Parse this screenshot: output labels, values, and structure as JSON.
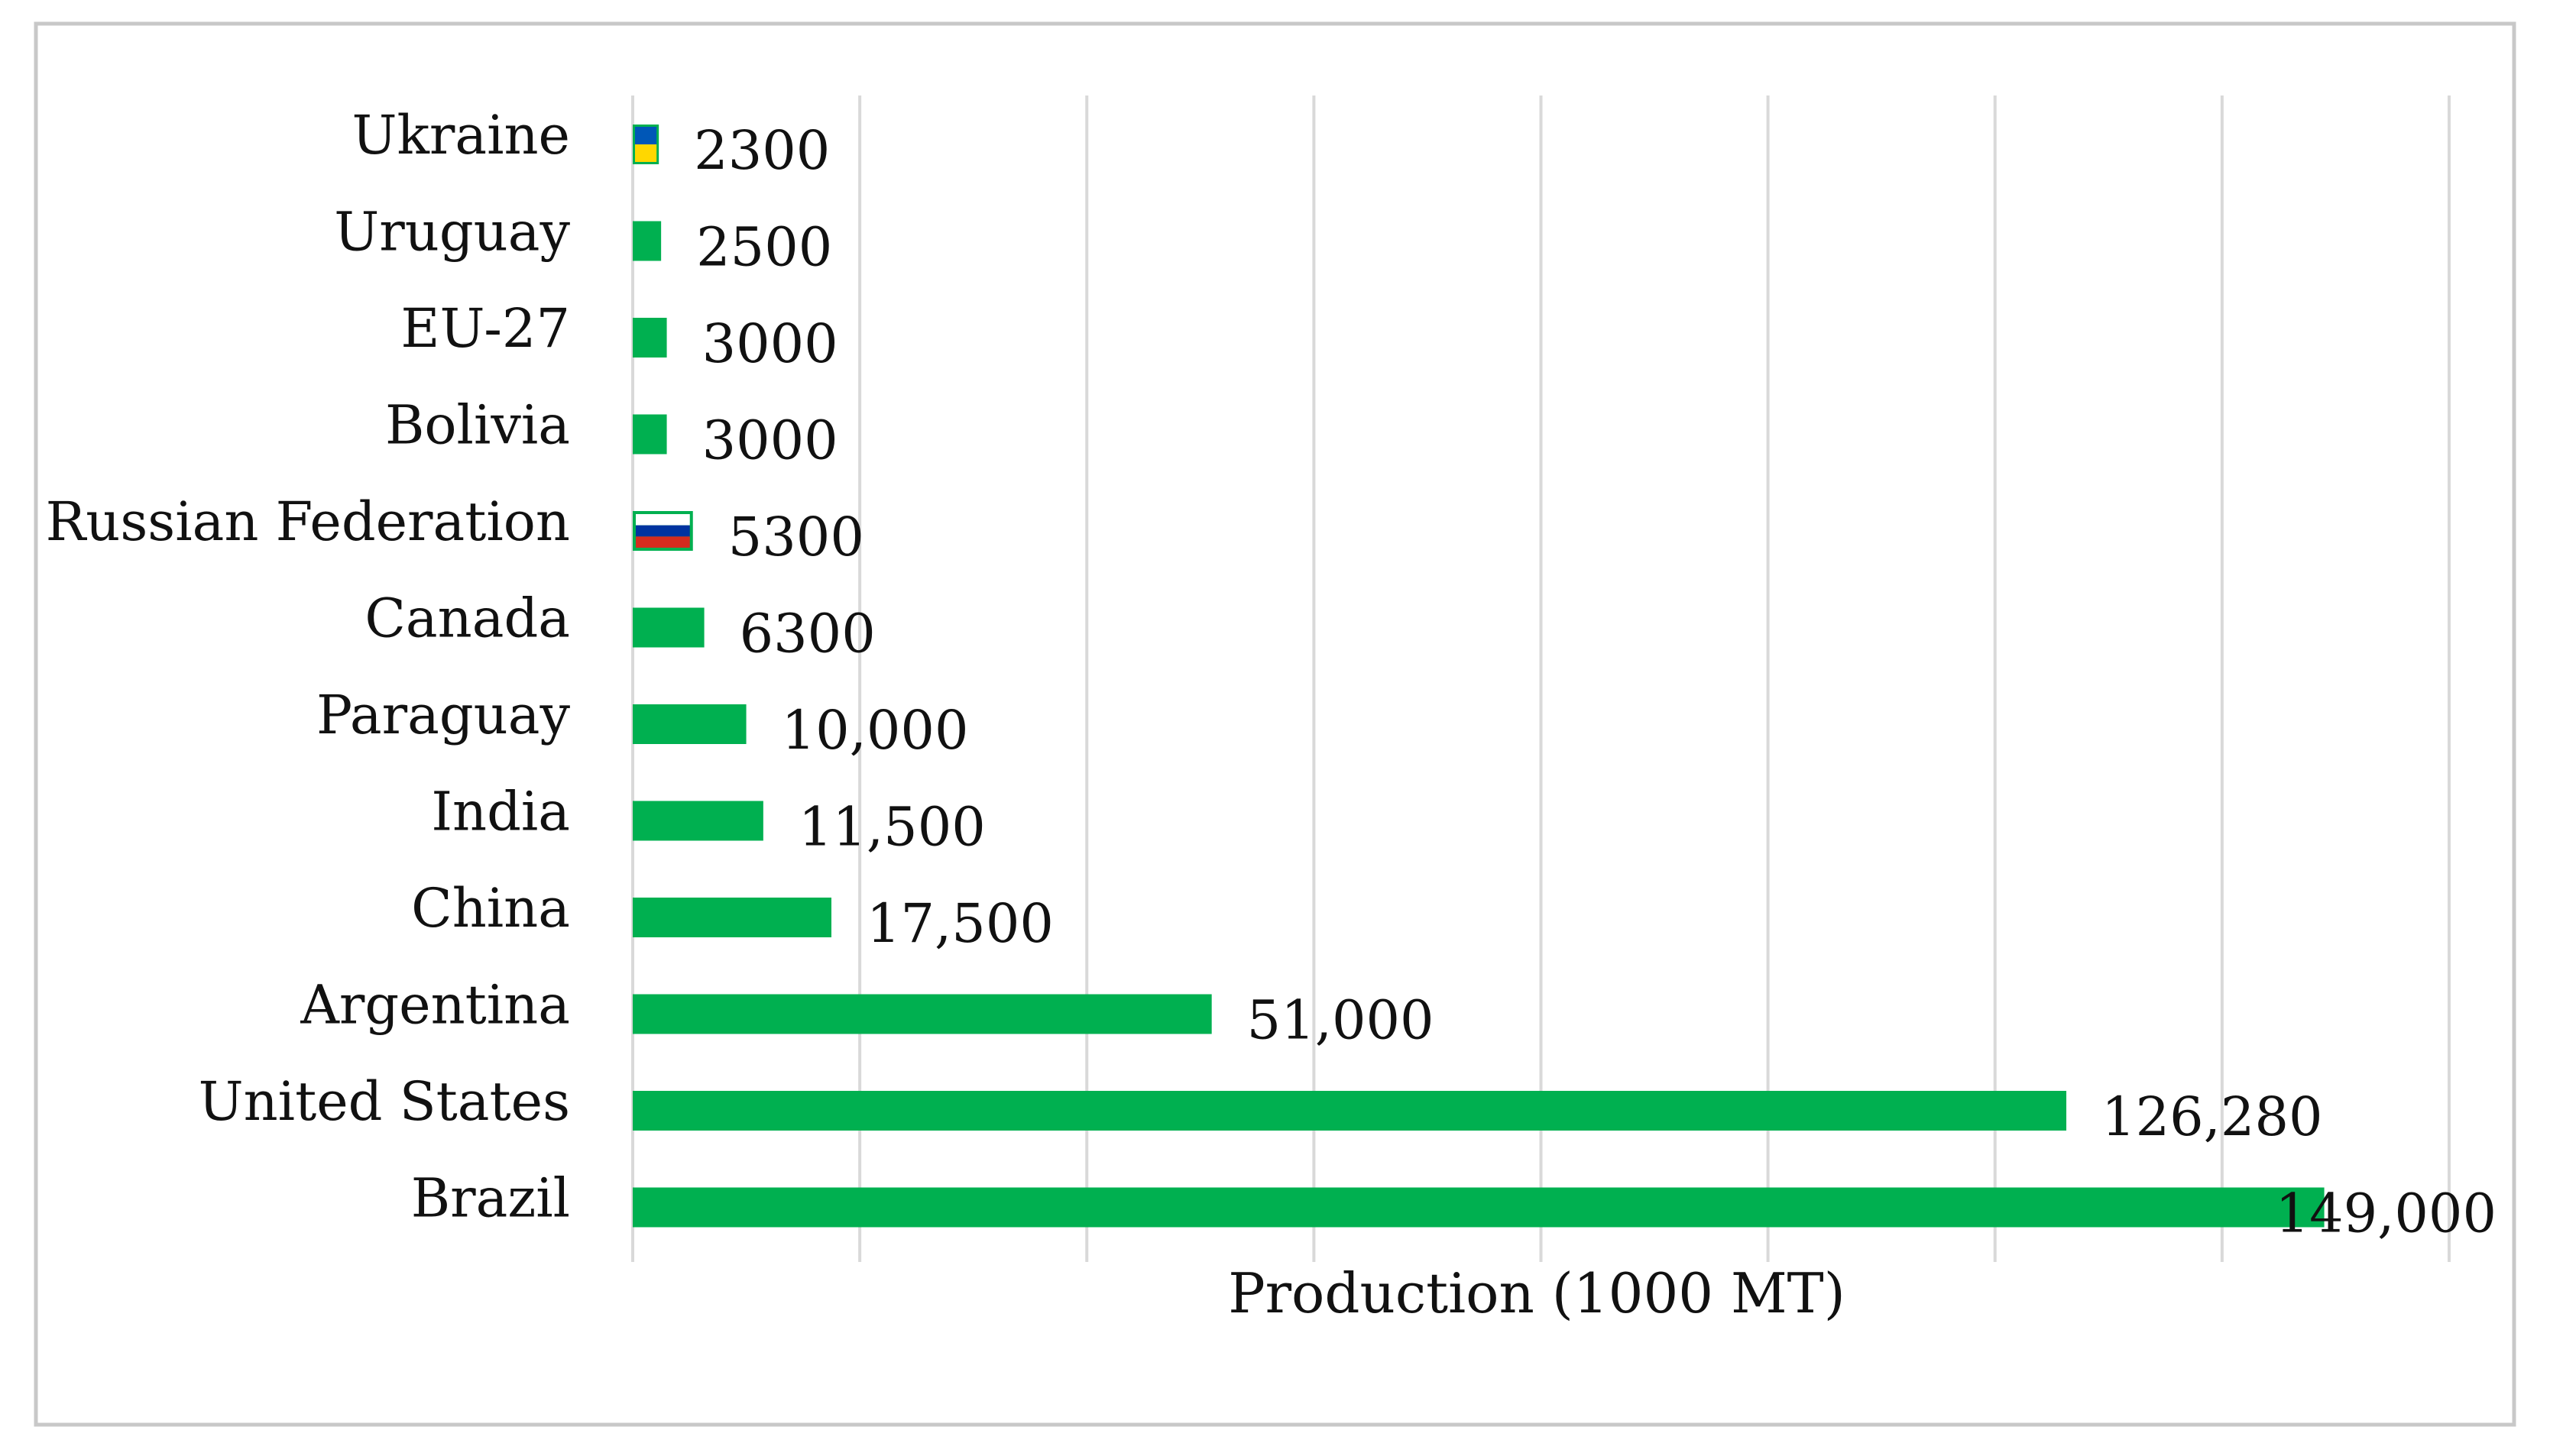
{
  "chart_data": {
    "type": "bar",
    "orientation": "horizontal",
    "title": "",
    "xlabel": "Production (1000 MT)",
    "ylabel": "",
    "xlim": [
      0,
      160000
    ],
    "grid": true,
    "legend": "none",
    "categories": [
      "Ukraine",
      "Uruguay",
      "EU-27",
      "Bolivia",
      "Russian Federation",
      "Canada",
      "Paraguay",
      "India",
      "China",
      "Argentina",
      "United States",
      "Brazil"
    ],
    "values": [
      2300,
      2500,
      3000,
      3000,
      5300,
      6300,
      10000,
      11500,
      17500,
      51000,
      126280,
      149000
    ],
    "value_labels": [
      "2300",
      "2500",
      "3000",
      "3000",
      "5300",
      "6300",
      "10,000",
      "11,500",
      "17,500",
      "51,000",
      "126,280",
      "149,000"
    ],
    "bar_fills": [
      "flag-ukraine",
      "plain",
      "plain",
      "plain",
      "flag-russia",
      "plain",
      "plain",
      "plain",
      "plain",
      "plain",
      "plain",
      "plain"
    ]
  },
  "colors": {
    "bar": "#00b050",
    "grid": "#d9d9d9",
    "frame": "#c8c8c8",
    "flag_blue": "#0057b7",
    "flag_yellow": "#ffd700",
    "flag_white": "#ffffff",
    "flag_russia_blue": "#0033a0",
    "flag_russia_red": "#d52b1e"
  }
}
